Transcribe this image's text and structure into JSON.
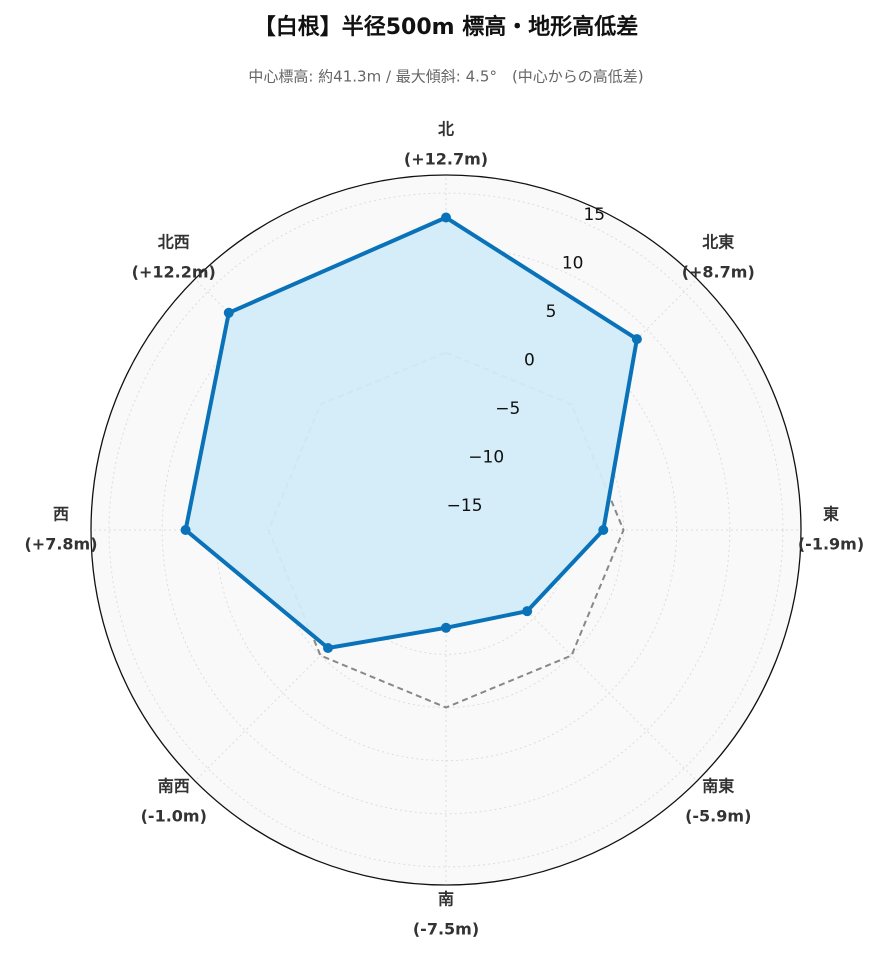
{
  "chart_data": {
    "type": "radar",
    "title": "【白根】半径500m 標高・地形高低差",
    "subtitle": "中心標高: 約41.3m / 最大傾斜: 4.5°　(中心からの高低差)",
    "categories": [
      "北",
      "北東",
      "東",
      "南東",
      "南",
      "南西",
      "西",
      "北西"
    ],
    "values": [
      12.7,
      8.7,
      -1.9,
      -5.9,
      -7.5,
      -1.0,
      7.8,
      12.2
    ],
    "value_labels": [
      "(+12.7m)",
      "(+8.7m)",
      "(-1.9m)",
      "(-5.9m)",
      "(-7.5m)",
      "(-1.0m)",
      "(+7.8m)",
      "(+12.2m)"
    ],
    "color": "#0a72b8",
    "fill_color": "#d3ecf8",
    "ylim": [
      -16.7,
      16.7
    ],
    "yticks": [
      {
        "value": -15,
        "label": "−15"
      },
      {
        "value": -10,
        "label": "−10"
      },
      {
        "value": -5,
        "label": "−5"
      },
      0,
      5,
      10,
      15
    ],
    "grid": true
  }
}
